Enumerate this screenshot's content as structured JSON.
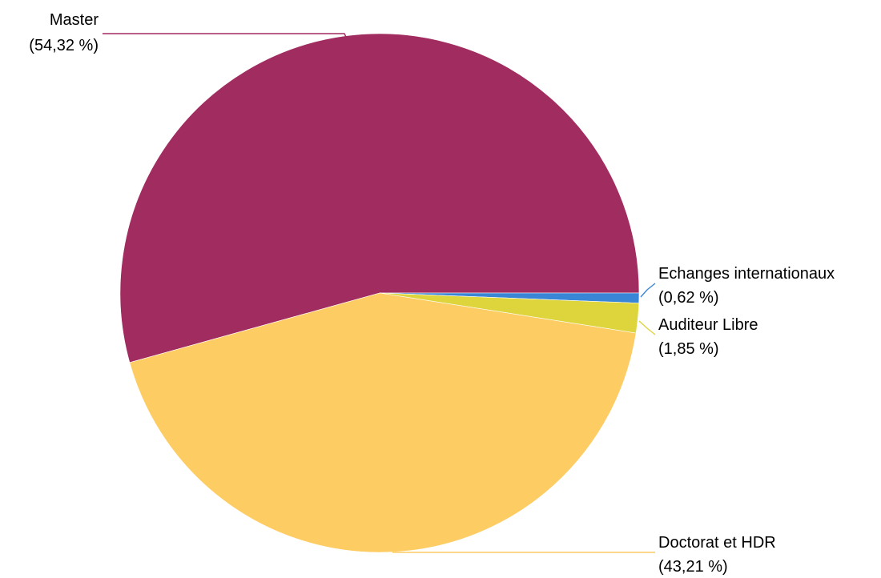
{
  "chart_data": {
    "type": "pie",
    "title": "",
    "slices": [
      {
        "label": "Master",
        "value": 54.32,
        "value_text": "(54,32 %)",
        "color": "#a12c60"
      },
      {
        "label": "Echanges internationaux",
        "value": 0.62,
        "value_text": "(0,62 %)",
        "color": "#3a86d6"
      },
      {
        "label": "Auditeur Libre",
        "value": 1.85,
        "value_text": "(1,85 %)",
        "color": "#ded43c"
      },
      {
        "label": "Doctorat et HDR",
        "value": 43.21,
        "value_text": "(43,21 %)",
        "color": "#fdcc63"
      }
    ],
    "start_angle": "3 o'clock",
    "direction": "clockwise",
    "legend": "none"
  }
}
